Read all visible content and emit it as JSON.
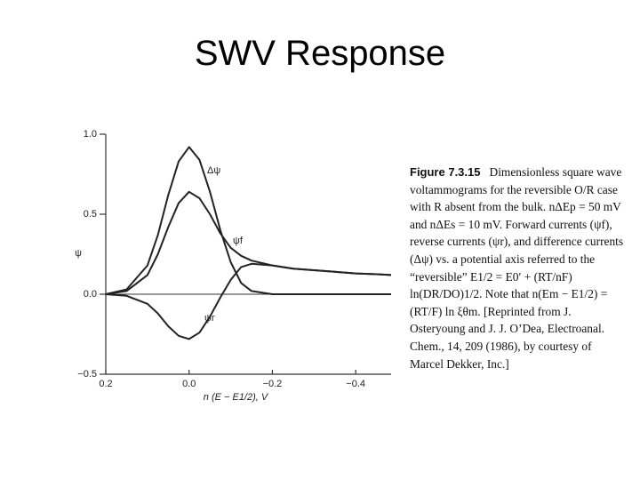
{
  "chart_data": {
    "type": "line",
    "title": "SWV Response",
    "x_label": "n (E − E1/2), V",
    "y_label": "ψ",
    "caption_label": "Figure 7.3.15",
    "caption": "Dimensionless square wave voltammograms for the reversible O/R case with R absent from the bulk. nΔEp = 50 mV and nΔEs = 10 mV. Forward currents (ψf), reverse currents (ψr), and difference currents (Δψ) vs. a potential axis referred to the “reversible” E1/2 = E0′ + (RT/nF) ln(DR/DO)1/2. Note that n(Em − E1/2) = (RT/F) ln ξθm. [Reprinted from J. Osteryoung and J. J. O’Dea, Electroanal. Chem., 14, 209 (1986), by courtesy of Marcel Dekker, Inc.]",
    "x": [
      0.2,
      0.15,
      0.1,
      0.075,
      0.05,
      0.025,
      0,
      -0.025,
      -0.05,
      -0.075,
      -0.1,
      -0.125,
      -0.15,
      -0.2,
      -0.25,
      -0.3,
      -0.35,
      -0.4,
      -0.45,
      -0.485
    ],
    "series": [
      {
        "name": "Δψ",
        "color": "#222222",
        "values": [
          0,
          0.03,
          0.18,
          0.37,
          0.62,
          0.83,
          0.92,
          0.84,
          0.64,
          0.4,
          0.2,
          0.07,
          0.02,
          0,
          0,
          0,
          0,
          0,
          0,
          0
        ]
      },
      {
        "name": "ψf",
        "color": "#222222",
        "values": [
          0,
          0.02,
          0.12,
          0.25,
          0.42,
          0.57,
          0.64,
          0.6,
          0.5,
          0.38,
          0.29,
          0.24,
          0.21,
          0.18,
          0.16,
          0.15,
          0.14,
          0.13,
          0.125,
          0.12
        ]
      },
      {
        "name": "ψr",
        "color": "#222222",
        "values": [
          0,
          -0.01,
          -0.06,
          -0.12,
          -0.2,
          -0.26,
          -0.28,
          -0.24,
          -0.14,
          -0.02,
          0.09,
          0.17,
          0.19,
          0.18,
          0.16,
          0.15,
          0.14,
          0.13,
          0.125,
          0.12
        ]
      }
    ],
    "xlim": [
      0.2,
      -0.485
    ],
    "ylim": [
      -0.5,
      1.0
    ],
    "xticks": [
      0.2,
      {
        "value": 0,
        "label": "0.0"
      },
      {
        "value": -0.2,
        "label": "−0.2"
      },
      {
        "value": -0.4,
        "label": "−0.4"
      }
    ],
    "yticks": [
      {
        "value": -0.5,
        "label": "−0.5"
      },
      {
        "value": 0,
        "label": "0.0"
      },
      0.5,
      {
        "value": 1.0,
        "label": "1.0"
      }
    ],
    "zero_line": true
  }
}
